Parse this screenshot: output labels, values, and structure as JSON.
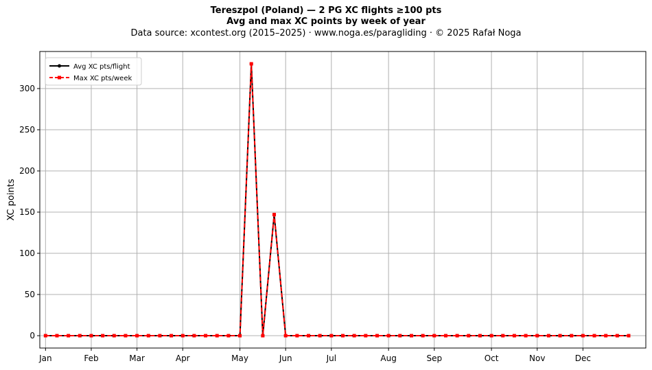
{
  "chart_data": {
    "type": "line",
    "title": "Tereszpol (Poland)  —  2 PG XC flights ≥100 pts",
    "title_line2": "Avg and max XC points by week of year",
    "subtitle": "Data source: xcontest.org (2015–2025)  ·  www.noga.es/paragliding  ·  © 2025 Rafał Noga",
    "xlabel": "",
    "ylabel": "XC points",
    "ylim": [
      -15,
      345
    ],
    "xlim": [
      0.5,
      53.5
    ],
    "grid": true,
    "legend_placement": "top-left",
    "yticks": [
      0,
      50,
      100,
      150,
      200,
      250,
      300
    ],
    "xticks": [
      {
        "week": 1,
        "label": "Jan"
      },
      {
        "week": 5,
        "label": "Feb"
      },
      {
        "week": 9,
        "label": "Mar"
      },
      {
        "week": 13,
        "label": "Apr"
      },
      {
        "week": 18,
        "label": "May"
      },
      {
        "week": 22,
        "label": "Jun"
      },
      {
        "week": 26,
        "label": "Jul"
      },
      {
        "week": 31,
        "label": "Aug"
      },
      {
        "week": 35,
        "label": "Sep"
      },
      {
        "week": 40,
        "label": "Oct"
      },
      {
        "week": 44,
        "label": "Nov"
      },
      {
        "week": 48,
        "label": "Dec"
      }
    ],
    "x": [
      1,
      2,
      3,
      4,
      5,
      6,
      7,
      8,
      9,
      10,
      11,
      12,
      13,
      14,
      15,
      16,
      17,
      18,
      19,
      20,
      21,
      22,
      23,
      24,
      25,
      26,
      27,
      28,
      29,
      30,
      31,
      32,
      33,
      34,
      35,
      36,
      37,
      38,
      39,
      40,
      41,
      42,
      43,
      44,
      45,
      46,
      47,
      48,
      49,
      50,
      51,
      52
    ],
    "series": [
      {
        "name": "Avg XC pts/flight",
        "color": "#000000",
        "style": "solid",
        "marker": "circle",
        "values": [
          0,
          0,
          0,
          0,
          0,
          0,
          0,
          0,
          0,
          0,
          0,
          0,
          0,
          0,
          0,
          0,
          0,
          0,
          330,
          0,
          147,
          0,
          0,
          0,
          0,
          0,
          0,
          0,
          0,
          0,
          0,
          0,
          0,
          0,
          0,
          0,
          0,
          0,
          0,
          0,
          0,
          0,
          0,
          0,
          0,
          0,
          0,
          0,
          0,
          0,
          0,
          0
        ]
      },
      {
        "name": "Max XC pts/week",
        "color": "#ff0000",
        "style": "dashed",
        "marker": "square",
        "values": [
          0,
          0,
          0,
          0,
          0,
          0,
          0,
          0,
          0,
          0,
          0,
          0,
          0,
          0,
          0,
          0,
          0,
          0,
          330,
          0,
          147,
          0,
          0,
          0,
          0,
          0,
          0,
          0,
          0,
          0,
          0,
          0,
          0,
          0,
          0,
          0,
          0,
          0,
          0,
          0,
          0,
          0,
          0,
          0,
          0,
          0,
          0,
          0,
          0,
          0,
          0,
          0
        ]
      }
    ]
  }
}
